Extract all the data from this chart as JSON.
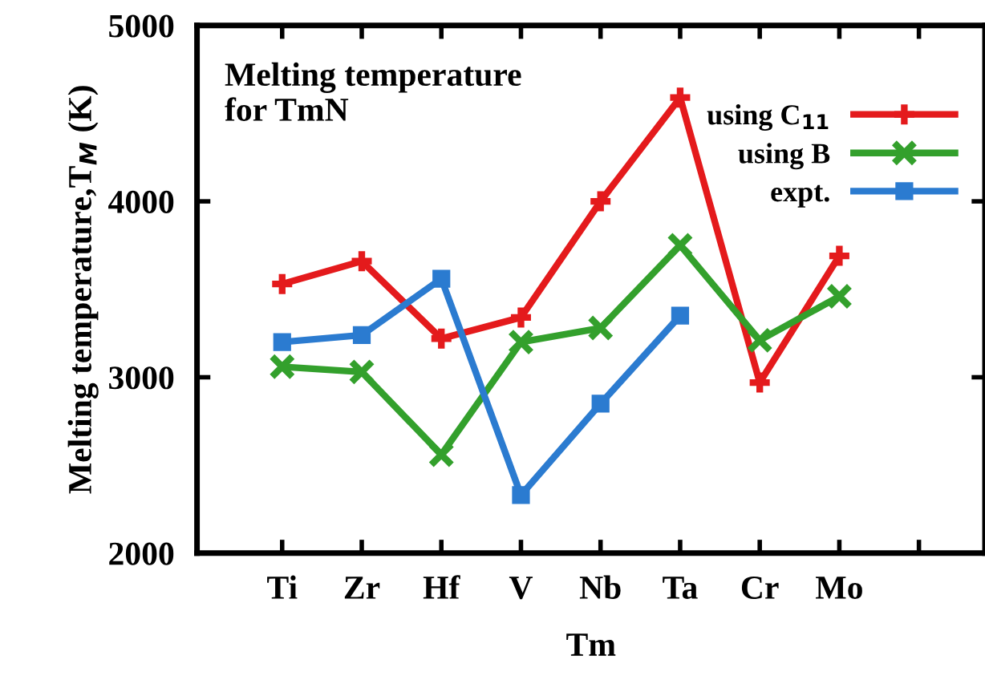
{
  "chart_data": {
    "type": "line",
    "title": "Melting temperature\nfor TmN",
    "xlabel": "Tm",
    "ylabel": "Melting temperature,T$_{M}$ (K)",
    "categories": [
      "Ti",
      "Zr",
      "Hf",
      "V",
      "Nb",
      "Ta",
      "Cr",
      "Mo",
      null
    ],
    "series": [
      {
        "name": "using C$_{11}$",
        "color": "#e41a1c",
        "marker": "plus",
        "values": [
          3530,
          3660,
          3220,
          3340,
          4000,
          4590,
          2970,
          3690,
          null
        ]
      },
      {
        "name": "using B",
        "color": "#33a02c",
        "marker": "cross",
        "values": [
          3060,
          3030,
          2560,
          3200,
          3280,
          3750,
          3210,
          3460,
          null
        ]
      },
      {
        "name": "expt.",
        "color": "#2b7bd0",
        "marker": "square",
        "values": [
          3200,
          3240,
          3560,
          2330,
          2850,
          3350,
          null,
          null,
          null
        ]
      }
    ],
    "ylim": [
      2000,
      5000
    ],
    "yticks": [
      2000,
      3000,
      4000,
      5000
    ],
    "grid": false,
    "legend": "top right",
    "line_style": "solid"
  }
}
